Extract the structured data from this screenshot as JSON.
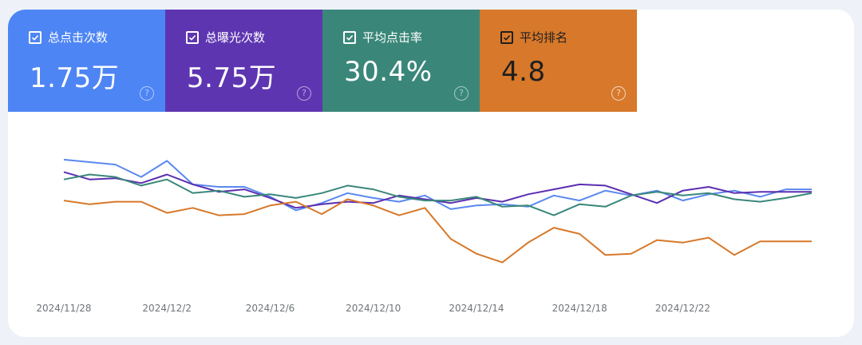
{
  "metrics": [
    {
      "label": "总点击次数",
      "value": "1.75万",
      "color": "#4e85f4",
      "checked": true
    },
    {
      "label": "总曝光次数",
      "value": "5.75万",
      "color": "#5e35b1",
      "checked": true
    },
    {
      "label": "平均点击率",
      "value": "30.4%",
      "color": "#3a877a",
      "checked": true
    },
    {
      "label": "平均排名",
      "value": "4.8",
      "color": "#d7782a",
      "checked": true
    }
  ],
  "help_icon": "?",
  "chart_data": {
    "type": "line",
    "x_tick_labels": [
      "2024/11/28",
      "2024/12/2",
      "2024/12/6",
      "2024/12/10",
      "2024/12/14",
      "2024/12/18",
      "2024/12/22"
    ],
    "n_points": 30,
    "y_axis_shown": false,
    "grid": false,
    "note": "Values are estimated relative levels (no y-axis printed); 0 = bottom of plot, 100 = top.",
    "series": [
      {
        "name": "总点击次数",
        "color": "#5a88f0",
        "values": [
          82,
          80,
          78,
          68,
          81,
          62,
          60,
          60,
          52,
          41,
          47,
          55,
          51,
          48,
          53,
          42,
          45,
          46,
          44,
          53,
          49,
          57,
          53,
          57,
          49,
          54,
          57,
          52,
          58,
          58
        ]
      },
      {
        "name": "总曝光次数",
        "color": "#5b2fb0",
        "values": [
          72,
          66,
          67,
          63,
          70,
          62,
          56,
          58,
          51,
          43,
          46,
          48,
          47,
          53,
          50,
          47,
          51,
          48,
          54,
          58,
          62,
          61,
          54,
          47,
          57,
          60,
          55,
          56,
          56,
          56
        ]
      },
      {
        "name": "平均点击率",
        "color": "#3a877a",
        "values": [
          66,
          70,
          68,
          61,
          66,
          55,
          57,
          52,
          54,
          51,
          55,
          61,
          58,
          52,
          49,
          49,
          52,
          44,
          45,
          37,
          46,
          44,
          53,
          56,
          53,
          55,
          50,
          48,
          51,
          55
        ]
      },
      {
        "name": "平均排名",
        "color": "#d7782a",
        "values": [
          49,
          46,
          48,
          48,
          39,
          43,
          37,
          38,
          45,
          48,
          38,
          50,
          45,
          37,
          43,
          18,
          6,
          -1,
          15,
          27,
          22,
          5,
          6,
          17,
          15,
          19,
          5,
          16,
          16,
          16
        ]
      }
    ]
  }
}
